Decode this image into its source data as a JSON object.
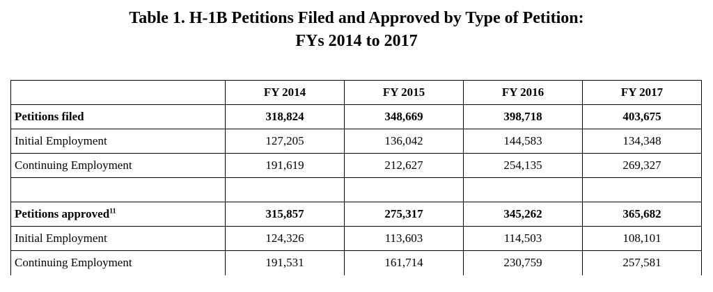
{
  "title": {
    "line1": "Table 1.  H-1B Petitions Filed and Approved by Type of Petition:",
    "line2": "FYs  2014 to 2017"
  },
  "table": {
    "columns": [
      "",
      "FY 2014",
      "FY 2015",
      "FY 2016",
      "FY 2017"
    ],
    "rows": [
      {
        "label": "Petitions filed",
        "footnote": "",
        "values": [
          "318,824",
          "348,669",
          "398,718",
          "403,675"
        ]
      },
      {
        "label": "Initial Employment",
        "footnote": "",
        "values": [
          "127,205",
          "136,042",
          "144,583",
          "134,348"
        ]
      },
      {
        "label": "Continuing Employment",
        "footnote": "",
        "values": [
          "191,619",
          "212,627",
          "254,135",
          "269,327"
        ]
      },
      {
        "label": "",
        "footnote": "",
        "values": [
          "",
          "",
          "",
          ""
        ]
      },
      {
        "label": "Petitions approved",
        "footnote": "11",
        "values": [
          "315,857",
          "275,317",
          "345,262",
          "365,682"
        ]
      },
      {
        "label": "Initial Employment",
        "footnote": "",
        "values": [
          "124,326",
          "113,603",
          "114,503",
          "108,101"
        ]
      },
      {
        "label": "Continuing Employment",
        "footnote": "",
        "values": [
          "191,531",
          "161,714",
          "230,759",
          "257,581"
        ]
      }
    ]
  },
  "chart_data": {
    "type": "table",
    "title": "Table 1.  H-1B Petitions Filed and Approved by Type of Petition: FYs  2014 to 2017",
    "columns": [
      "FY 2014",
      "FY 2015",
      "FY 2016",
      "FY 2017"
    ],
    "rows": [
      {
        "name": "Petitions filed",
        "values": [
          318824,
          348669,
          398718,
          403675
        ]
      },
      {
        "name": "Initial Employment",
        "values": [
          127205,
          136042,
          144583,
          134348
        ]
      },
      {
        "name": "Continuing Employment",
        "values": [
          191619,
          212627,
          254135,
          269327
        ]
      },
      {
        "name": "Petitions approved",
        "values": [
          315857,
          275317,
          345262,
          365682
        ]
      },
      {
        "name": "Initial Employment",
        "values": [
          124326,
          113603,
          114503,
          108101
        ]
      },
      {
        "name": "Continuing Employment",
        "values": [
          191531,
          161714,
          230759,
          257581
        ]
      }
    ]
  }
}
